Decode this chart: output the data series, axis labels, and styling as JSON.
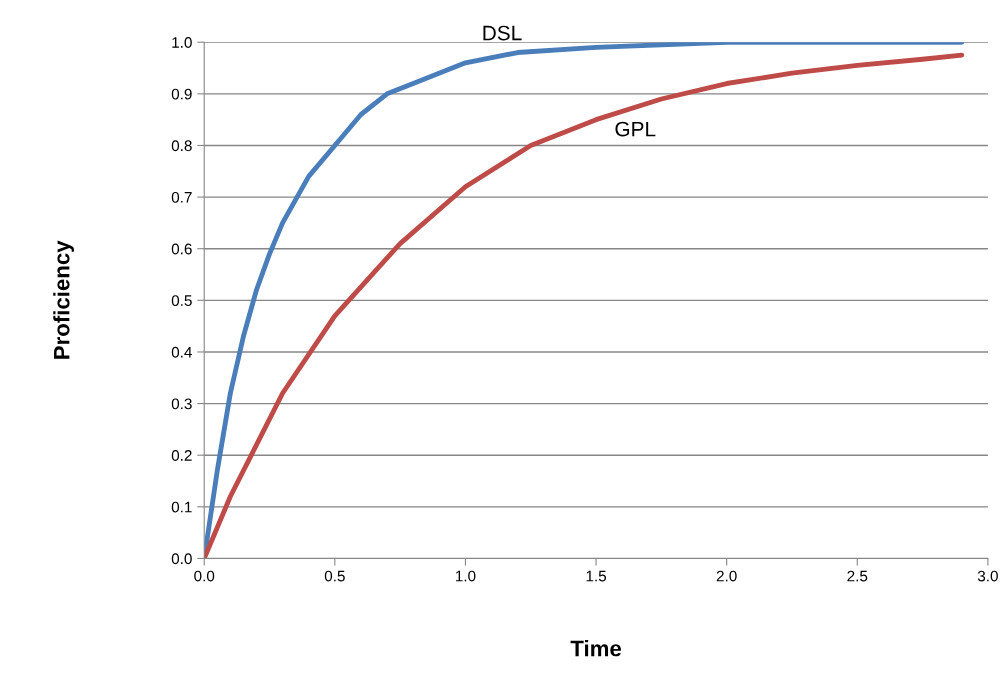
{
  "chart_data": {
    "type": "line",
    "xlabel": "Time",
    "ylabel": "Proficiency",
    "xlim": [
      0,
      3.0
    ],
    "xticks": [
      {
        "value": 0,
        "label": "0.0"
      },
      0.5,
      {
        "value": 1,
        "label": "1.0"
      },
      1.5,
      {
        "value": 2,
        "label": "2.0"
      },
      2.5,
      {
        "value": 3,
        "label": "3.0"
      }
    ],
    "ylim": [
      0,
      1.0
    ],
    "yticks": [
      {
        "value": 0,
        "label": "0.0"
      },
      0.1,
      0.2,
      0.3,
      0.4,
      0.5,
      0.6,
      0.7,
      0.8,
      0.9,
      {
        "value": 1,
        "label": "1.0"
      }
    ],
    "grid": "y",
    "legend": false,
    "marker": "none",
    "line_style": "solid",
    "series": [
      {
        "name": "DSL",
        "color": "#4a7ebb",
        "x": [
          0,
          0.05,
          0.1,
          0.15,
          0.2,
          0.25,
          0.3,
          0.4,
          0.5,
          0.6,
          0.7,
          0.8,
          1.0,
          1.2,
          1.5,
          2.0,
          2.5,
          2.9
        ],
        "values": [
          0,
          0.17,
          0.32,
          0.43,
          0.52,
          0.59,
          0.65,
          0.74,
          0.8,
          0.86,
          0.9,
          0.92,
          0.96,
          0.98,
          0.99,
          1.0,
          1.0,
          1.0
        ]
      },
      {
        "name": "GPL",
        "color": "#be4b48",
        "x": [
          0,
          0.1,
          0.2,
          0.3,
          0.5,
          0.75,
          1.0,
          1.25,
          1.5,
          1.75,
          2.0,
          2.25,
          2.5,
          2.75,
          2.9
        ],
        "values": [
          0,
          0.12,
          0.22,
          0.32,
          0.47,
          0.61,
          0.72,
          0.8,
          0.85,
          0.89,
          0.92,
          0.94,
          0.955,
          0.967,
          0.975
        ]
      }
    ]
  }
}
